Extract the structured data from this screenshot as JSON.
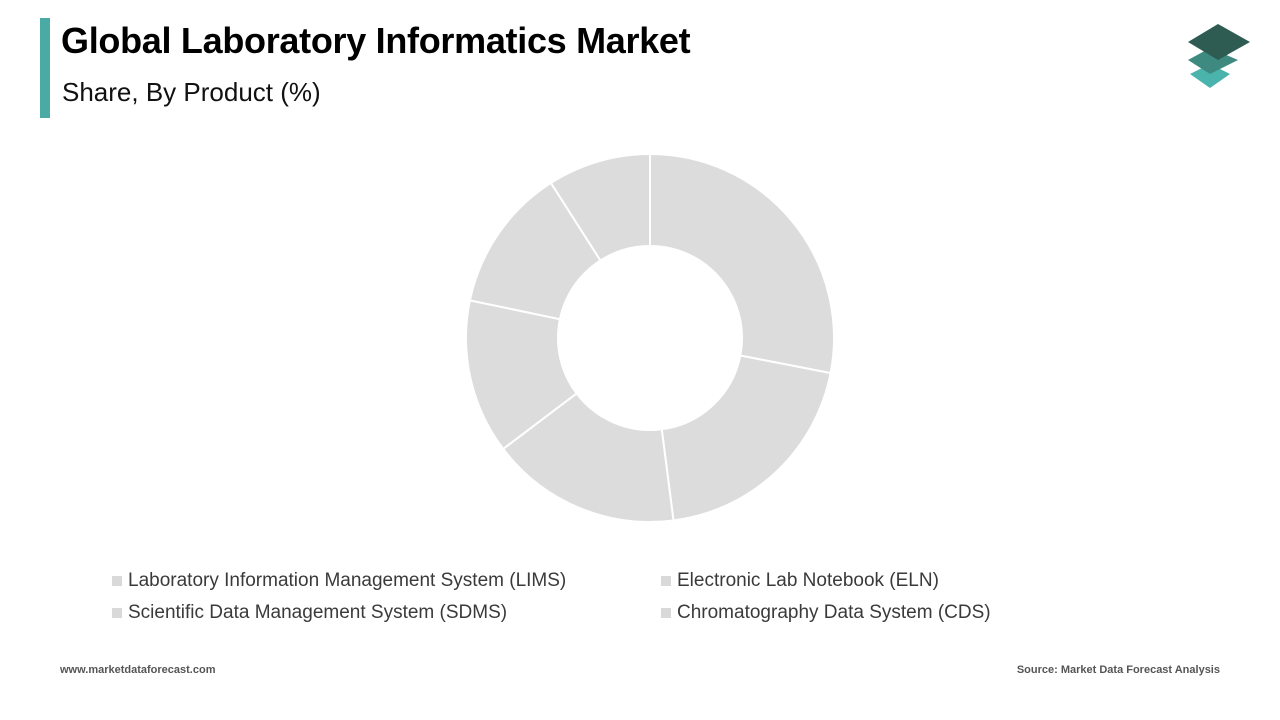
{
  "header": {
    "title": "Global Laboratory Informatics Market",
    "subtitle": "Share, By Product (%)"
  },
  "colors": {
    "accent": "#4aaba6",
    "slice": "#dcdcdc",
    "legend_swatch": "#d9d9d9",
    "logo_dark": "#2e5b52",
    "logo_mid": "#3f8a80",
    "logo_light": "#49b3ac"
  },
  "logo": {
    "icon": "stacked-layers-logo-icon"
  },
  "chart_data": {
    "type": "pie",
    "donut": true,
    "start_angle_deg": 0,
    "direction": "clockwise",
    "categories": [
      "Laboratory Information Management System (LIMS)",
      "Electronic Lab Notebook (ELN)",
      "Scientific Data Management System (SDMS)",
      "Chromatography Data System (CDS)",
      "",
      ""
    ],
    "values": [
      31,
      22,
      18.5,
      15,
      14,
      10
    ],
    "legend": {
      "position": "bottom",
      "entries": [
        "Laboratory Information Management System (LIMS)",
        "Electronic Lab Notebook (ELN)",
        "Scientific Data Management System (SDMS)",
        "Chromatography Data System (CDS)"
      ]
    }
  },
  "footer": {
    "website": "www.marketdataforecast.com",
    "source": "Source: Market Data Forecast Analysis"
  }
}
